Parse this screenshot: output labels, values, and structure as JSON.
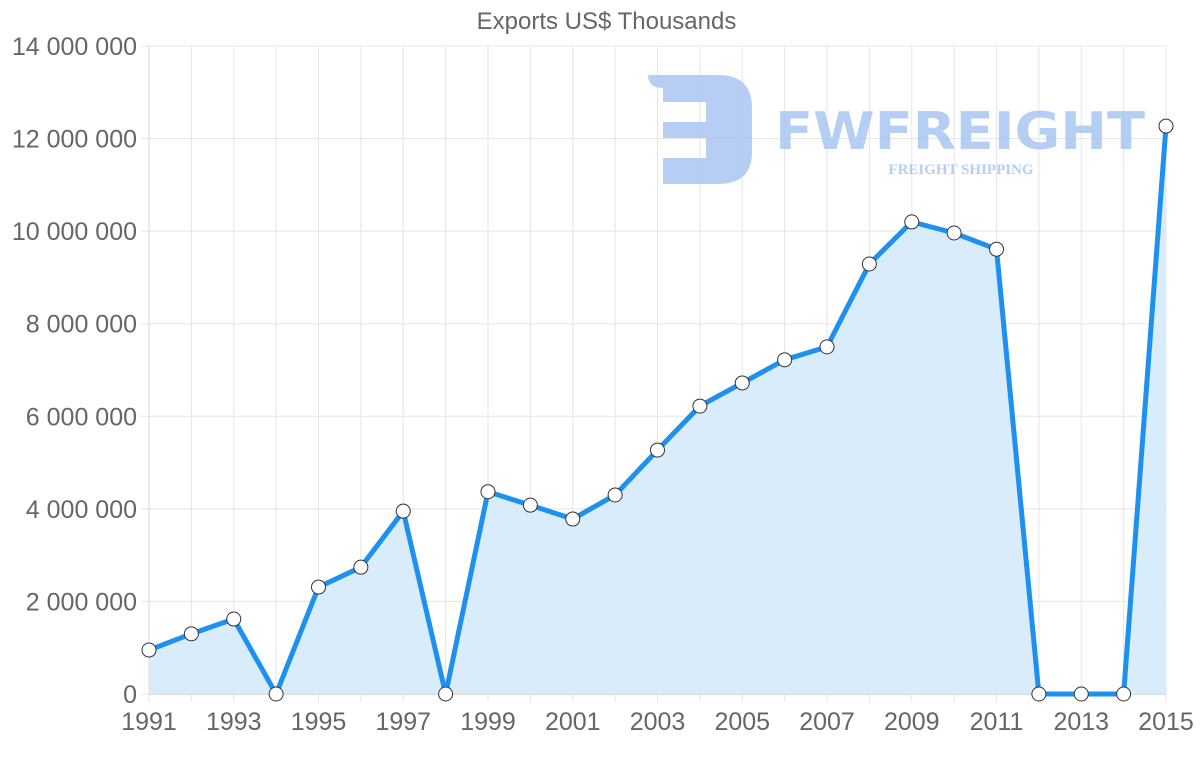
{
  "chart_data": {
    "type": "area",
    "title": "Exports US$ Thousands",
    "xlabel": "",
    "ylabel": "",
    "x": [
      1991,
      1992,
      1993,
      1994,
      1995,
      1996,
      1997,
      1998,
      1999,
      2000,
      2001,
      2002,
      2003,
      2004,
      2005,
      2006,
      2007,
      2008,
      2009,
      2010,
      2011,
      2012,
      2013,
      2014,
      2015
    ],
    "series": [
      {
        "name": "Exports US$ Thousands",
        "values": [
          950000,
          1300000,
          1620000,
          0,
          2310000,
          2740000,
          3950000,
          0,
          4370000,
          4080000,
          3780000,
          4300000,
          5270000,
          6220000,
          6720000,
          7220000,
          7500000,
          9290000,
          10200000,
          9960000,
          9610000,
          0,
          0,
          0,
          12270000
        ]
      }
    ],
    "x_tick_labels": [
      "1991",
      "1993",
      "1995",
      "1997",
      "1999",
      "2001",
      "2003",
      "2005",
      "2007",
      "2009",
      "2011",
      "2013",
      "2015"
    ],
    "y_tick_labels": [
      "0",
      "2 000 000",
      "4 000 000",
      "6 000 000",
      "8 000 000",
      "10 000 000",
      "12 000 000",
      "14 000 000"
    ],
    "ylim": [
      0,
      14000000
    ],
    "xlim": [
      1991,
      2015
    ],
    "grid": true,
    "legend": "none",
    "colors": {
      "line": "#1E90F0",
      "fill": "#D7EBFC",
      "point_fill": "#FFFFFF",
      "point_stroke": "#333333",
      "grid": "#E5E5E5",
      "text": "#666666"
    }
  },
  "watermark": {
    "brand": "FWFREIGHT",
    "tagline": "FREIGHT SHIPPING",
    "color": "#A9C6F2"
  }
}
